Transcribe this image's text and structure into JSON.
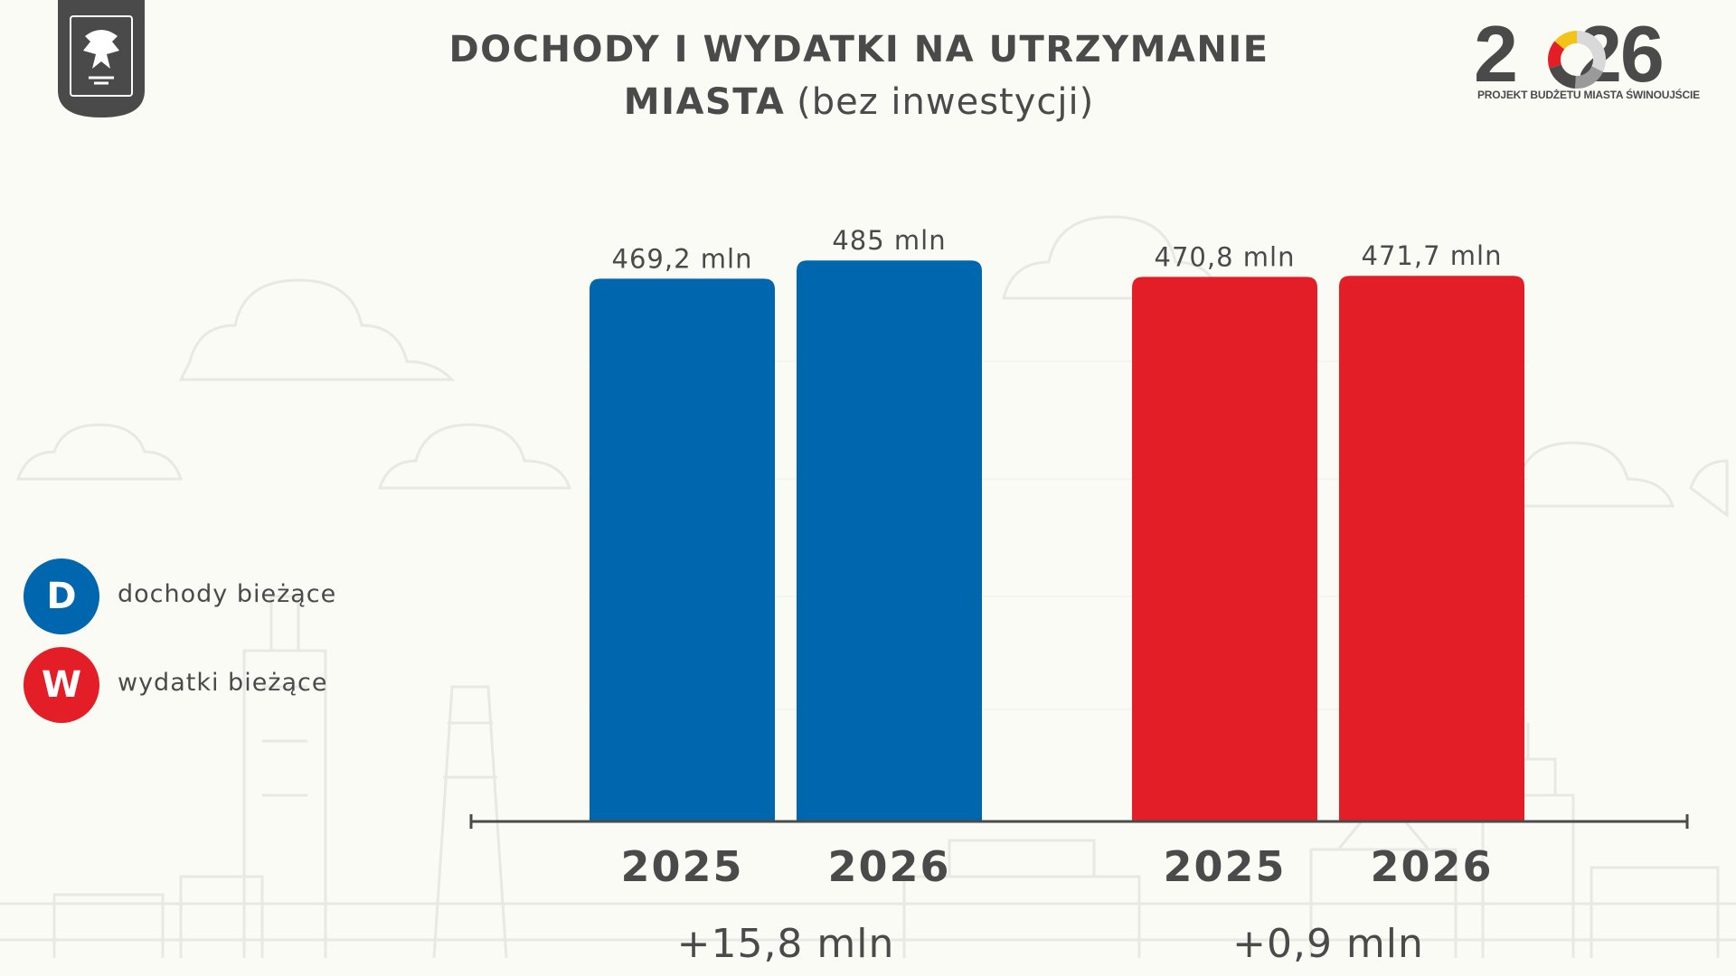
{
  "header": {
    "title_line1": "DOCHODY I WYDATKI NA UTRZYMANIE",
    "title_line2_bold": "MIASTA",
    "title_line2_light": "(bez inwestycji)"
  },
  "crest": {
    "label": "ŚWINOUJŚCIE"
  },
  "brand": {
    "year": "2026",
    "subtitle": "PROJEKT BUDŻETU MIASTA ŚWINOUJŚCIE",
    "donut_colors": [
      "#d9d9d9",
      "#9a9a9a",
      "#4a4a4a",
      "#e41e26",
      "#f2c318"
    ]
  },
  "legend": {
    "items": [
      {
        "letter": "D",
        "label": "dochody bieżące",
        "color": "#0066ad"
      },
      {
        "letter": "W",
        "label": "wydatki bieżące",
        "color": "#e41e26"
      }
    ]
  },
  "chart_data": {
    "type": "bar",
    "title": "DOCHODY I WYDATKI NA UTRZYMANIE MIASTA (bez inwestycji)",
    "xlabel": "",
    "ylabel": "",
    "unit": "mln",
    "ylim": [
      0,
      500
    ],
    "grid": false,
    "legend_position": "left",
    "groups": [
      {
        "name": "dochody bieżące",
        "color": "#0066ad",
        "categories": [
          "2025",
          "2026"
        ],
        "values": [
          469.2,
          485.0
        ],
        "value_labels": [
          "469,2 mln",
          "485 mln"
        ],
        "difference_label": "+15,8 mln"
      },
      {
        "name": "wydatki bieżące",
        "color": "#e41e26",
        "categories": [
          "2025",
          "2026"
        ],
        "values": [
          470.8,
          471.7
        ],
        "value_labels": [
          "470,8 mln",
          "471,7 mln"
        ],
        "difference_label": "+0,9 mln"
      }
    ]
  }
}
